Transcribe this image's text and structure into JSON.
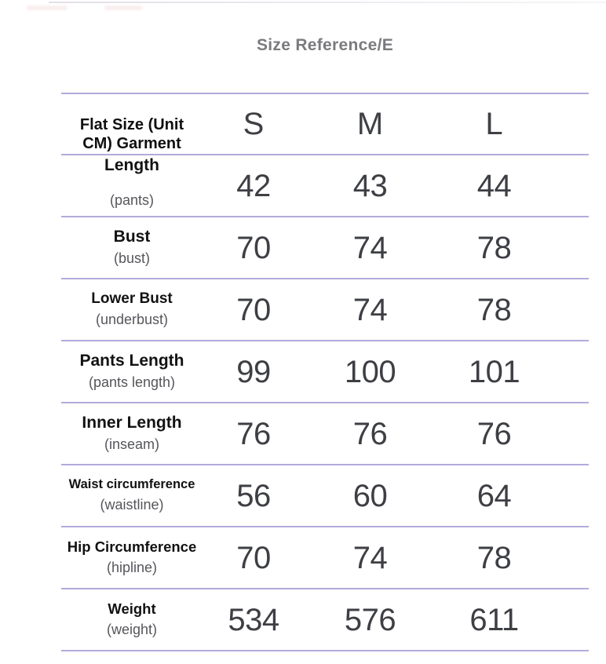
{
  "page": {
    "title": "Size Reference/E"
  },
  "table": {
    "header": {
      "label": "Flat Size (Unit\nCM) Garment",
      "columns": [
        "S",
        "M",
        "L"
      ]
    },
    "rows": [
      {
        "label": "Length",
        "sub": "(pants)",
        "values": [
          "42",
          "43",
          "44"
        ]
      },
      {
        "label": "Bust",
        "sub": "(bust)",
        "values": [
          "70",
          "74",
          "78"
        ]
      },
      {
        "label": "Lower Bust",
        "sub": "(underbust)",
        "values": [
          "70",
          "74",
          "78"
        ]
      },
      {
        "label": "Pants Length",
        "sub": "(pants length)",
        "values": [
          "99",
          "100",
          "101"
        ]
      },
      {
        "label": "Inner Length",
        "sub": "(inseam)",
        "values": [
          "76",
          "76",
          "76"
        ]
      },
      {
        "label": "Waist circumference",
        "sub": "(waistline)",
        "values": [
          "56",
          "60",
          "64"
        ]
      },
      {
        "label": "Hip Circumference",
        "sub": "(hipline)",
        "values": [
          "70",
          "74",
          "78"
        ]
      },
      {
        "label": "Weight",
        "sub": "(weight)",
        "values": [
          "534",
          "576",
          "611"
        ]
      }
    ],
    "colors": {
      "divider": "#b4aadb",
      "value_text": "#3e3f44",
      "label_text": "#121212",
      "sub_text": "#55565b",
      "title_text": "#7a7a7f"
    }
  }
}
